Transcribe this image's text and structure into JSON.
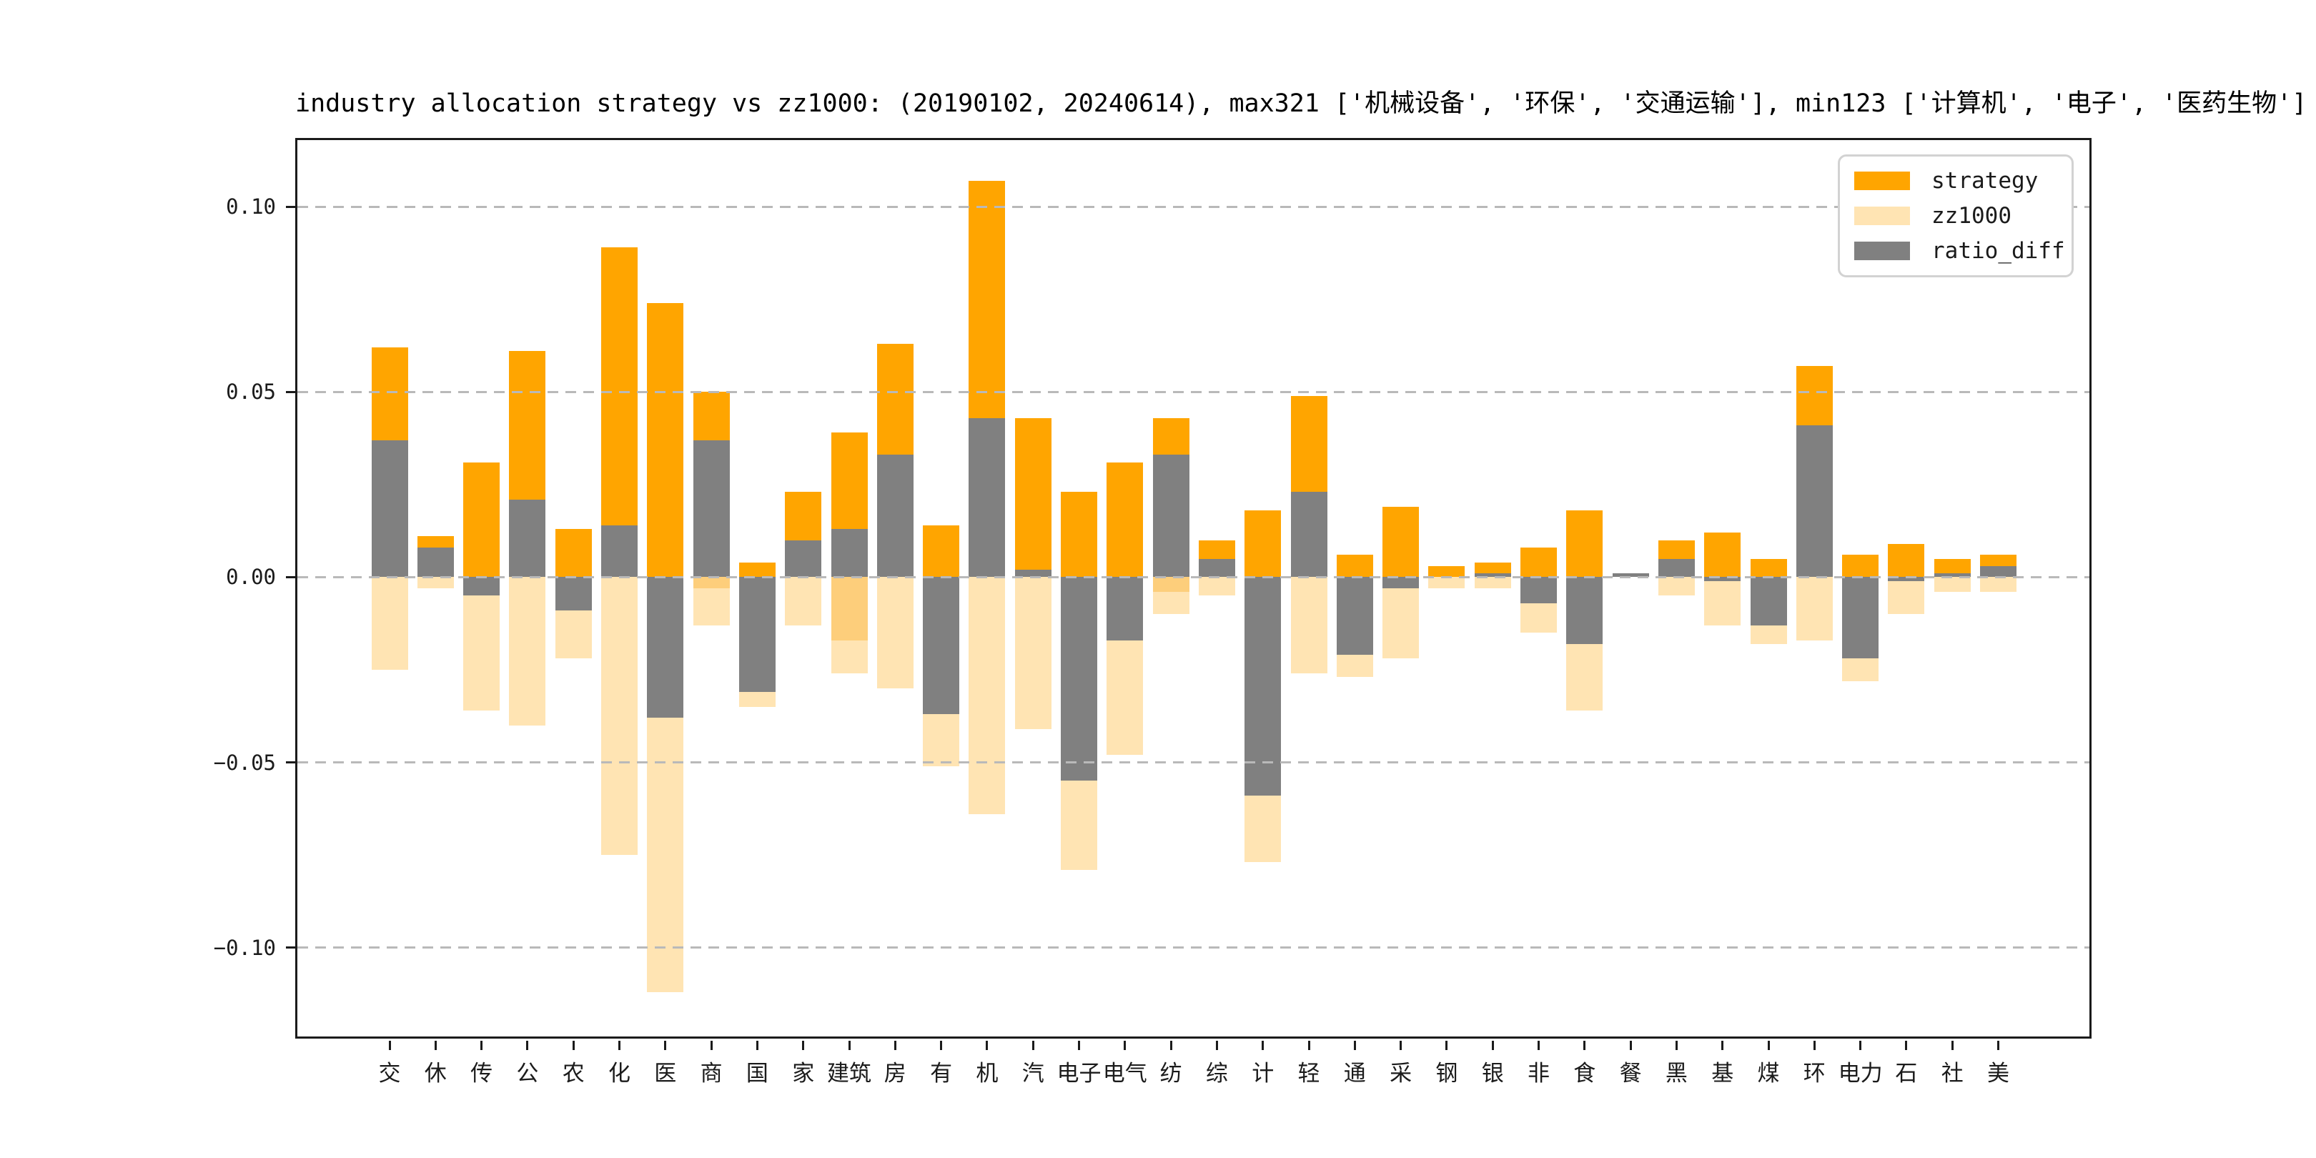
{
  "chart_data": {
    "type": "bar",
    "title": "industry allocation strategy vs zz1000: (20190102, 20240614), max321 ['机械设备', '环保', '交通运输'], min123 ['计算机', '电子', '医药生物']",
    "categories": [
      "交",
      "休",
      "传",
      "公",
      "农",
      "化",
      "医",
      "商",
      "国",
      "家",
      "建筑",
      "房",
      "有",
      "机",
      "汽",
      "电子",
      "电气",
      "纺",
      "综",
      "计",
      "轻",
      "通",
      "采",
      "钢",
      "银",
      "非",
      "食",
      "餐",
      "黑",
      "基",
      "煤",
      "环",
      "电力",
      "石",
      "社",
      "美"
    ],
    "series": [
      {
        "name": "strategy",
        "color": "#FFA500",
        "values": [
          0.062,
          0.011,
          0.031,
          0.061,
          0.013,
          0.089,
          0.074,
          0.05,
          0.004,
          0.023,
          0.039,
          0.063,
          0.014,
          0.107,
          0.043,
          0.023,
          0.031,
          0.043,
          0.01,
          0.018,
          0.049,
          0.006,
          0.019,
          0.003,
          0.004,
          0.008,
          0.018,
          0.001,
          0.01,
          0.012,
          0.005,
          0.057,
          0.006,
          0.009,
          0.005,
          0.006
        ]
      },
      {
        "name": "zz1000",
        "color": "#FFE4B3",
        "values": [
          -0.025,
          -0.003,
          -0.036,
          -0.04,
          -0.022,
          -0.075,
          -0.112,
          -0.013,
          -0.035,
          -0.013,
          -0.026,
          -0.03,
          -0.051,
          -0.064,
          -0.041,
          -0.079,
          -0.048,
          -0.01,
          -0.005,
          -0.077,
          -0.026,
          -0.027,
          -0.022,
          -0.003,
          -0.003,
          -0.015,
          -0.036,
          0,
          -0.005,
          -0.013,
          -0.018,
          -0.017,
          -0.028,
          -0.01,
          -0.004,
          -0.004
        ]
      },
      {
        "name": "ratio_diff",
        "color": "#808080",
        "values": [
          0.037,
          0.008,
          -0.005,
          0.021,
          -0.009,
          0.014,
          -0.038,
          0.037,
          -0.031,
          0.01,
          0.013,
          0.033,
          -0.037,
          0.043,
          0.002,
          -0.055,
          -0.017,
          0.033,
          0.005,
          -0.059,
          0.023,
          -0.021,
          -0.003,
          0,
          0.001,
          -0.007,
          -0.018,
          0.001,
          0.005,
          -0.001,
          -0.013,
          0.041,
          -0.022,
          -0.001,
          0.001,
          0.003
        ]
      }
    ],
    "zz1000_overlap_depths": [
      0,
      0,
      0,
      0,
      0,
      0,
      0,
      0.003,
      0,
      0,
      0.017,
      0,
      0,
      0,
      0,
      0,
      0,
      0.004,
      0,
      0,
      0,
      0,
      0,
      0,
      0,
      0,
      0,
      0,
      0,
      0,
      0,
      0,
      0,
      0,
      0,
      0
    ],
    "overlap_color": "#FDCE7B",
    "ylim": [
      -0.124,
      0.118
    ],
    "yticks": [
      0.1,
      0.05,
      0.0,
      -0.05,
      -0.1
    ],
    "ytick_labels": [
      "0.10",
      "0.05",
      "0.00",
      "−0.05",
      "−0.10"
    ],
    "grid": "horizontal-dashed",
    "grid_color": "#b9b9b9",
    "legend_position": "upper right",
    "legend_labels": [
      "strategy",
      "zz1000",
      "ratio_diff"
    ]
  }
}
